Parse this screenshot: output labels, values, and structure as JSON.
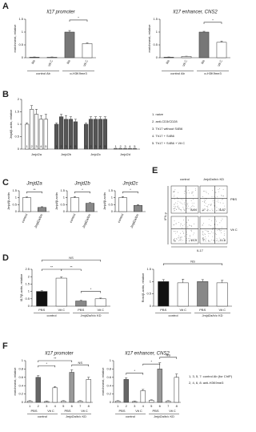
{
  "panels": [
    "A",
    "B",
    "C",
    "D",
    "E",
    "F"
  ],
  "chart_data": [
    {
      "type": "bar",
      "title": "Il17 promoter",
      "ylabel": "enrichment, relative",
      "categories": [
        "No",
        "Vit C",
        "No",
        "Vit C"
      ],
      "group_labels": [
        "control Ab",
        "α-H3K9me3"
      ],
      "values": [
        0.02,
        0.02,
        1.0,
        0.55
      ],
      "errors": [
        0.01,
        0.01,
        0.06,
        0.03
      ],
      "colors": [
        "#777777",
        "#ffffff",
        "#777777",
        "#ffffff"
      ],
      "ylim": [
        0,
        1.5
      ],
      "yticks": [
        0,
        0.5,
        1,
        1.5
      ],
      "annotations": [
        "*"
      ]
    },
    {
      "type": "bar",
      "title": "Il17 enhancer, CNS2",
      "ylabel": "enrichment, relative",
      "categories": [
        "No",
        "Vit C",
        "No",
        "Vit C"
      ],
      "group_labels": [
        "control Ab",
        "α-H3K9me3"
      ],
      "values": [
        0.02,
        0.05,
        1.0,
        0.6
      ],
      "errors": [
        0.01,
        0.01,
        0.03,
        0.05
      ],
      "colors": [
        "#777777",
        "#ffffff",
        "#777777",
        "#ffffff"
      ],
      "ylim": [
        0,
        1.5
      ],
      "yticks": [
        0,
        0.5,
        1,
        1.5
      ],
      "annotations": [
        "*"
      ]
    },
    {
      "type": "grouped_bar",
      "ylabel": "Jmjd/β-actin, relative",
      "categories": [
        "Jmjd2a",
        "Jmjd2b",
        "Jmjd2c",
        "Jmjd2d"
      ],
      "category_colors": [
        "#ffffff",
        "#555555",
        "#555555",
        "#ffffff"
      ],
      "bar_labels": [
        "1",
        "2",
        "3",
        "4",
        "5"
      ],
      "series": [
        {
          "name": "1. naive",
          "values": [
            1.0,
            1.0,
            1.0,
            0.02
          ],
          "errors": [
            0.05,
            0.05,
            0.05,
            0.01
          ]
        },
        {
          "name": "2. anti-CD3/CD28",
          "values": [
            1.6,
            1.3,
            1.2,
            0.02
          ],
          "errors": [
            0.15,
            0.1,
            0.1,
            0.01
          ]
        },
        {
          "name": "3. Th17 without S4B6",
          "values": [
            1.4,
            1.2,
            1.2,
            0.02
          ],
          "errors": [
            0.2,
            0.15,
            0.1,
            0.01
          ]
        },
        {
          "name": "4. Th17 + S4B6",
          "values": [
            1.2,
            1.2,
            1.2,
            0.02
          ],
          "errors": [
            0.15,
            0.1,
            0.1,
            0.01
          ]
        },
        {
          "name": "5. Th17 + S4B6 + Vit C",
          "values": [
            1.2,
            1.1,
            1.2,
            0.02
          ],
          "errors": [
            0.2,
            0.1,
            0.1,
            0.01
          ]
        }
      ],
      "ylim": [
        0,
        2
      ],
      "yticks": [
        0,
        0.5,
        1,
        1.5,
        2
      ]
    },
    {
      "type": "bar",
      "title": "Jmjd2a",
      "ylabel": "Jmjd/β-actin",
      "categories": [
        "control",
        "Jmjd2a/b/c"
      ],
      "values": [
        1.0,
        0.3
      ],
      "errors": [
        0.05,
        0.05
      ],
      "colors": [
        "#ffffff",
        "#888888"
      ],
      "ylim": [
        0,
        1.5
      ],
      "yticks": [
        0,
        0.5,
        1,
        1.5
      ],
      "annotations": [
        "**"
      ]
    },
    {
      "type": "bar",
      "title": "Jmjd2b",
      "ylabel": "Jmjd/β-actin",
      "categories": [
        "control",
        "Jmjd2a/b/c"
      ],
      "values": [
        1.0,
        0.6
      ],
      "errors": [
        0.08,
        0.05
      ],
      "colors": [
        "#ffffff",
        "#888888"
      ],
      "ylim": [
        0,
        1.5
      ],
      "yticks": [
        0,
        0.5,
        1,
        1.5
      ],
      "annotations": [
        "*"
      ]
    },
    {
      "type": "bar",
      "title": "Jmjd2c",
      "ylabel": "Jmjd/β-actin",
      "categories": [
        "control",
        "Jmjd2a/b/c"
      ],
      "values": [
        1.0,
        0.45
      ],
      "errors": [
        0.08,
        0.05
      ],
      "colors": [
        "#ffffff",
        "#888888"
      ],
      "ylim": [
        0,
        1.5
      ],
      "yticks": [
        0,
        0.5,
        1,
        1.5
      ],
      "annotations": [
        "*"
      ]
    },
    {
      "type": "bar",
      "ylabel": "Il17/β-actin, relative",
      "categories": [
        "PBS",
        "Vit C",
        "PBS",
        "Vit C"
      ],
      "group_labels": [
        "control",
        "Jmjd2a/b/c KD"
      ],
      "values": [
        1.0,
        1.9,
        0.35,
        0.5
      ],
      "errors": [
        0.05,
        0.08,
        0.05,
        0.05
      ],
      "colors": [
        "#111111",
        "#ffffff",
        "#888888",
        "#ffffff"
      ],
      "ylim": [
        0,
        2.5
      ],
      "yticks": [
        0,
        0.5,
        1,
        1.5,
        2,
        2.5
      ],
      "annotations": [
        "**",
        "**",
        "*",
        "NS"
      ]
    },
    {
      "type": "bar",
      "ylabel": "Rorc/β-actin, relative",
      "categories": [
        "PBS",
        "Vit C",
        "PBS",
        "Vit C"
      ],
      "group_labels": [
        "control",
        "Jmjd2a/b/c KD"
      ],
      "values": [
        1.0,
        0.95,
        1.0,
        0.95
      ],
      "errors": [
        0.08,
        0.15,
        0.08,
        0.1
      ],
      "colors": [
        "#111111",
        "#ffffff",
        "#888888",
        "#ffffff"
      ],
      "ylim": [
        0,
        1.5
      ],
      "yticks": [
        0,
        0.5,
        1,
        1.5
      ],
      "annotations": [
        "NS"
      ]
    },
    {
      "type": "bar",
      "title": "Il17 promoter",
      "ylabel": "enrichment, relative",
      "categories": [
        "1",
        "2",
        "3",
        "4",
        "5",
        "6",
        "7",
        "8"
      ],
      "sub_labels": [
        "PBS",
        "Vit C",
        "PBS",
        "Vit C"
      ],
      "group_labels": [
        "control",
        "Jmjd2a/b/c KD"
      ],
      "values": [
        0.03,
        0.6,
        0.02,
        0.35,
        0.03,
        0.72,
        0.03,
        0.55
      ],
      "errors": [
        0.01,
        0.04,
        0.01,
        0.03,
        0.01,
        0.06,
        0.01,
        0.05
      ],
      "colors": [
        "#ffffff",
        "#666666",
        "#ffffff",
        "#ffffff",
        "#ffffff",
        "#999999",
        "#ffffff",
        "#ffffff"
      ],
      "ylim": [
        0,
        1
      ],
      "yticks": [
        0,
        0.2,
        0.4,
        0.6,
        0.8,
        1
      ],
      "annotations": [
        "*",
        "**",
        "NS"
      ]
    },
    {
      "type": "bar",
      "title": "Il17 enhancer, CNS2",
      "ylabel": "enrichment, relative",
      "categories": [
        "1",
        "2",
        "3",
        "4",
        "5",
        "6",
        "7",
        "8"
      ],
      "sub_labels": [
        "PBS",
        "Vit C",
        "PBS",
        "Vit C"
      ],
      "group_labels": [
        "control",
        "Jmjd2a/b/c KD"
      ],
      "values": [
        0.03,
        0.55,
        0.02,
        0.28,
        0.05,
        0.8,
        0.03,
        0.6
      ],
      "errors": [
        0.01,
        0.04,
        0.01,
        0.03,
        0.01,
        0.15,
        0.01,
        0.08
      ],
      "colors": [
        "#ffffff",
        "#666666",
        "#ffffff",
        "#ffffff",
        "#ffffff",
        "#999999",
        "#ffffff",
        "#ffffff"
      ],
      "ylim": [
        0,
        1
      ],
      "yticks": [
        0,
        0.2,
        0.4,
        0.6,
        0.8,
        1
      ],
      "annotations": [
        "*",
        "*",
        "NS"
      ]
    }
  ],
  "flow": {
    "columns": [
      "control",
      "Jmjd2a/b/c KD"
    ],
    "rows": [
      "PBS",
      "Vit C"
    ],
    "y_label": "IFN-γ",
    "x_label": "IL17",
    "quadrant_values": [
      [
        8.84,
        8.87
      ],
      [
        15.3,
        11.6
      ]
    ]
  },
  "f_legend": [
    "1, 3, 5, 7: control Ab (for ChIP)",
    "2, 4, 6, 8: anti-H3K9me3"
  ]
}
